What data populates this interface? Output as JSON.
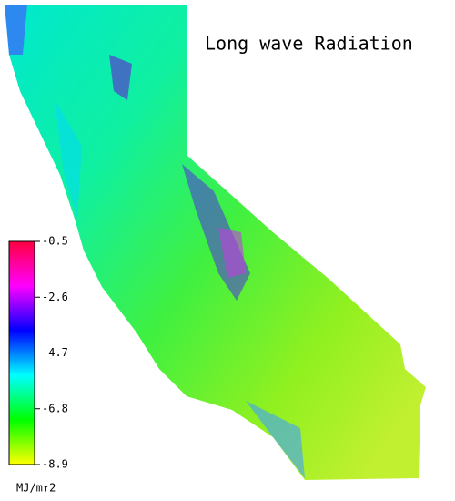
{
  "title": "Long wave Radiation",
  "colorbar": {
    "range": [
      -8.9,
      -0.5
    ],
    "ticks": [
      -0.5,
      -2.6,
      -4.7,
      -6.8,
      -8.9
    ],
    "unit": "MJ/m↑2",
    "colors": [
      "#ffff00",
      "#00ff00",
      "#00ffff",
      "#0000ff",
      "#ff00ff",
      "#ff0040"
    ]
  }
}
